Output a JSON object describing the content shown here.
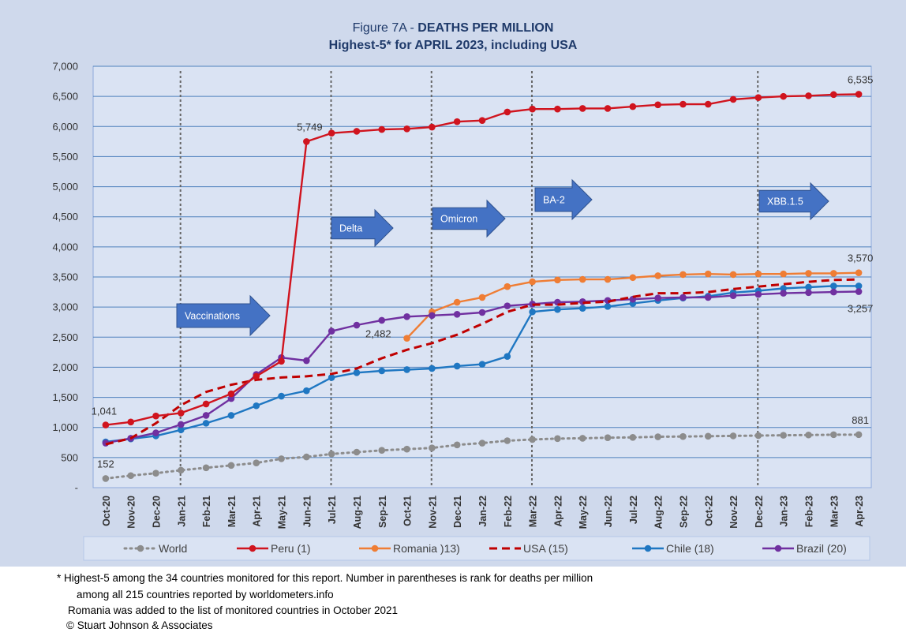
{
  "title": {
    "prefix": "Figure 7A - ",
    "main": "DEATHS PER MILLION",
    "subtitle": "Highest-5* for  APRIL 2023, including USA"
  },
  "footnotes": [
    "* Highest-5 among the 34 countries monitored for this report. Number in parentheses is rank for deaths per million",
    "among all 215 countries reported by worldometers.info",
    "Romania was added to the list of monitored countries in October 2021",
    "© Stuart Johnson & Associates"
  ],
  "chart_data": {
    "type": "line",
    "title": "Figure 7A - DEATHS PER MILLION",
    "subtitle": "Highest-5* for  APRIL 2023, including USA",
    "categories": [
      "Oct-20",
      "Nov-20",
      "Dec-20",
      "Jan-21",
      "Feb-21",
      "Mar-21",
      "Apr-21",
      "May-21",
      "Jun-21",
      "Jul-21",
      "Aug-21",
      "Sep-21",
      "Oct-21",
      "Nov-21",
      "Dec-21",
      "Jan-22",
      "Feb-22",
      "Mar-22",
      "Apr-22",
      "May-22",
      "Jun-22",
      "Jul-22",
      "Aug-22",
      "Sep-22",
      "Oct-22",
      "Nov-22",
      "Dec-22",
      "Jan-23",
      "Feb-23",
      "Mar-23",
      "Apr-23"
    ],
    "y_ticks": [
      "-",
      "500",
      "1,000",
      "1,500",
      "2,000",
      "2,500",
      "3,000",
      "3,500",
      "4,000",
      "4,500",
      "5,000",
      "5,500",
      "6,000",
      "6,500",
      "7,000"
    ],
    "ylim": [
      0,
      7000
    ],
    "grid": true,
    "legend_position": "bottom",
    "series": [
      {
        "name": "World",
        "color": "#8c8c8c",
        "style": "dotted",
        "values": [
          152,
          200,
          240,
          290,
          330,
          370,
          410,
          480,
          510,
          560,
          590,
          620,
          640,
          660,
          710,
          740,
          780,
          800,
          815,
          820,
          830,
          835,
          845,
          850,
          855,
          860,
          865,
          870,
          875,
          880,
          881
        ]
      },
      {
        "name": "Peru (1)",
        "color": "#d0141e",
        "style": "solid",
        "values": [
          1041,
          1090,
          1190,
          1240,
          1390,
          1560,
          1850,
          2100,
          5749,
          5890,
          5920,
          5950,
          5960,
          5990,
          6080,
          6100,
          6240,
          6290,
          6290,
          6300,
          6300,
          6330,
          6360,
          6370,
          6370,
          6450,
          6480,
          6500,
          6510,
          6530,
          6535
        ]
      },
      {
        "name": "Romania )13)",
        "color": "#ef7d34",
        "style": "solid",
        "values": [
          null,
          null,
          null,
          null,
          null,
          null,
          null,
          null,
          null,
          null,
          null,
          null,
          2482,
          2920,
          3080,
          3160,
          3340,
          3420,
          3450,
          3460,
          3460,
          3490,
          3520,
          3540,
          3550,
          3540,
          3550,
          3550,
          3560,
          3560,
          3570
        ]
      },
      {
        "name": "USA (15)",
        "color": "#c00000",
        "style": "dashed",
        "values": [
          720,
          820,
          1070,
          1370,
          1590,
          1710,
          1790,
          1830,
          1850,
          1890,
          1980,
          2150,
          2290,
          2400,
          2540,
          2720,
          2920,
          3040,
          3040,
          3070,
          3090,
          3170,
          3230,
          3230,
          3250,
          3300,
          3340,
          3380,
          3420,
          3450,
          3460
        ]
      },
      {
        "name": "Chile (18)",
        "color": "#1f77c2",
        "style": "solid",
        "values": [
          760,
          810,
          860,
          960,
          1070,
          1200,
          1360,
          1520,
          1610,
          1830,
          1910,
          1940,
          1960,
          1980,
          2020,
          2050,
          2180,
          2920,
          2960,
          2980,
          3010,
          3060,
          3110,
          3150,
          3180,
          3240,
          3270,
          3310,
          3330,
          3350,
          3350
        ]
      },
      {
        "name": "Brazil (20)",
        "color": "#7030a0",
        "style": "solid",
        "values": [
          740,
          820,
          910,
          1050,
          1200,
          1480,
          1880,
          2160,
          2110,
          2600,
          2700,
          2780,
          2840,
          2860,
          2880,
          2910,
          3020,
          3050,
          3080,
          3090,
          3110,
          3130,
          3150,
          3160,
          3160,
          3190,
          3210,
          3230,
          3240,
          3250,
          3257
        ]
      }
    ],
    "data_labels": [
      {
        "series": "Peru (1)",
        "index": 0,
        "text": "1,041"
      },
      {
        "series": "World",
        "index": 0,
        "text": "152"
      },
      {
        "series": "Peru (1)",
        "index": 8,
        "text": "5,749"
      },
      {
        "series": "Peru (1)",
        "index": 30,
        "text": "6,535"
      },
      {
        "series": "Romania )13)",
        "index": 12,
        "text": "2,482"
      },
      {
        "series": "Romania )13)",
        "index": 30,
        "text": "3,570"
      },
      {
        "series": "Brazil (20)",
        "index": 30,
        "text": "3,257"
      },
      {
        "series": "World",
        "index": 30,
        "text": "881"
      }
    ],
    "phase_markers": [
      {
        "index": 3,
        "label": "Vaccinations"
      },
      {
        "index": 9,
        "label": "Delta"
      },
      {
        "index": 13,
        "label": "Omicron"
      },
      {
        "index": 17,
        "label": "BA-2"
      },
      {
        "index": 26,
        "label": "XBB.1.5"
      }
    ]
  }
}
